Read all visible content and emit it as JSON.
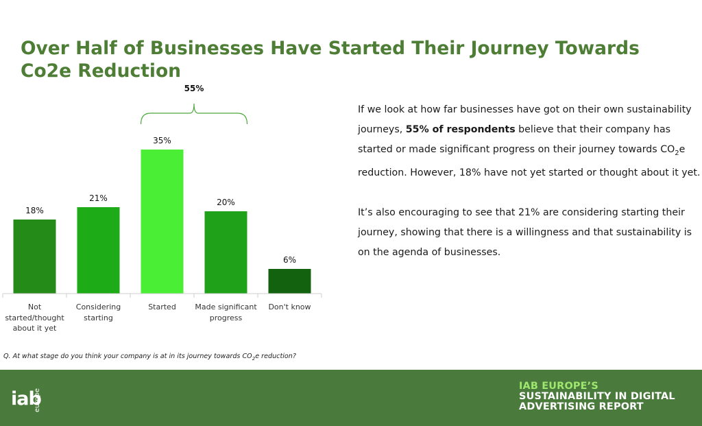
{
  "title": "Over Half of Businesses Have Started Their Journey Towards Co2e Reduction",
  "chart_data": {
    "type": "bar",
    "categories": [
      "Not started/thought about it yet",
      "Considering starting",
      "Started",
      "Made significant progress",
      "Don't know"
    ],
    "values": [
      18,
      21,
      35,
      20,
      6
    ],
    "value_labels": [
      "18%",
      "21%",
      "35%",
      "20%",
      "6%"
    ],
    "colors": [
      "#248a18",
      "#1dab17",
      "#4aef35",
      "#1fa21a",
      "#13620f"
    ],
    "bracket": {
      "label": "55%",
      "spans": [
        "Started",
        "Made significant progress"
      ]
    },
    "unit": "%"
  },
  "body": {
    "p1": {
      "before": "If we look at how far businesses have got on their own sustainability journeys, ",
      "bold": "55% of respondents",
      "mid": " believe that their company has started or made significant progress on their journey towards CO",
      "sub": "2",
      "after": "e reduction. However, 18% have not yet started or thought about it yet."
    },
    "p2": "It’s also encouraging to see that 21% are considering starting their journey, showing that there is a willingness and that sustainability is on the agenda of businesses."
  },
  "question": {
    "before": "Q. At what stage do you think your company is at in its journey towards CO",
    "sub": "2",
    "after": "e reduction?"
  },
  "footer": {
    "logo_text": "iab",
    "logo_sub": "europe",
    "report_line1": "IAB EUROPE’S",
    "report_line2": "SUSTAINABILITY IN DIGITAL",
    "report_line3": "ADVERTISING REPORT",
    "accent_color": "#9fe870",
    "background_color": "#4a7a3c"
  }
}
